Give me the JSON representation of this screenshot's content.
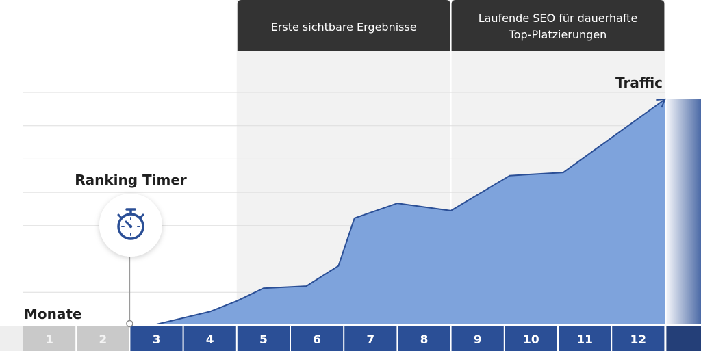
{
  "phases": [
    {
      "label_lines": [
        "Erste sichtbare Ergebnisse"
      ]
    },
    {
      "label_lines": [
        "Laufende SEO für dauerhafte",
        "Top-Platzierungen"
      ]
    }
  ],
  "marker": {
    "label": "Ranking Timer",
    "icon": "stopwatch-icon"
  },
  "colors": {
    "area": "#7ea3dc",
    "line": "#2b4f96",
    "axis_active": "#2b4f96",
    "axis_inactive": "#c9c9c9",
    "phase_header": "#333333",
    "phase_band": "#f2f2f2"
  },
  "chart_data": {
    "type": "area",
    "xlabel": "Monate",
    "ylabel": "Traffic",
    "x": [
      3,
      3.5,
      4,
      4.5,
      5,
      5.8,
      6.4,
      6.7,
      7.5,
      8.5,
      9.6,
      10.6,
      12.5
    ],
    "y": [
      0,
      6,
      12,
      22,
      34,
      36,
      55,
      100,
      114,
      107,
      140,
      143,
      212
    ],
    "xlim": [
      0.5,
      12.5
    ],
    "ylim": [
      0,
      212
    ],
    "months": [
      "1",
      "2",
      "3",
      "4",
      "5",
      "6",
      "7",
      "8",
      "9",
      "10",
      "11",
      "12"
    ],
    "active_months_from": 3,
    "phase_ranges": [
      [
        4.5,
        8.5
      ],
      [
        8.5,
        12.5
      ]
    ],
    "marker_month": 3,
    "grid": true
  }
}
